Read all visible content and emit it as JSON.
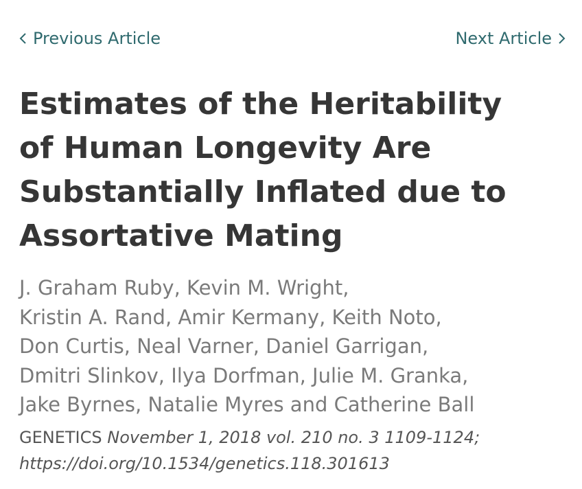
{
  "nav": {
    "previous_label": "Previous Article",
    "next_label": "Next Article",
    "link_color": "#2f6a6e"
  },
  "article": {
    "title_lines": [
      "Estimates of the Heritability",
      "of Human Longevity Are",
      "Substantially Inflated due to",
      "Assortative Mating"
    ],
    "author_lines": [
      "J. Graham Ruby, Kevin M. Wright,",
      "Kristin A. Rand, Amir Kermany, Keith Noto,",
      "Don Curtis, Neal Varner, Daniel Garrigan,",
      "Dmitri Slinkov, Ilya Dorfman, Julie M. Granka,",
      "Jake Byrnes, Natalie Myres and Catherine Ball"
    ],
    "citation": {
      "journal": "GENETICS",
      "details": "November 1, 2018 vol. 210 no. 3 1109-1124;",
      "doi": "https://doi.org/10.1534/genetics.118.301613"
    }
  },
  "icons": {
    "previous": "chevron-left-icon",
    "next": "chevron-right-icon"
  }
}
